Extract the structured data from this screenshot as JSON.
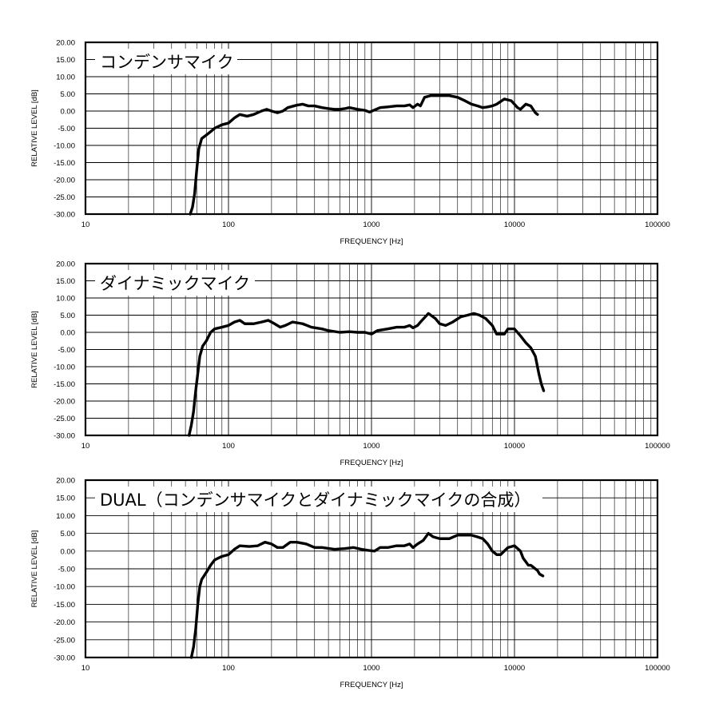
{
  "chart_data": [
    {
      "type": "line",
      "title": "コンデンサマイク",
      "xlabel": "FREQUENCY [Hz]",
      "ylabel": "RELATIVE LEVEL [dB]",
      "xscale": "log",
      "xlim": [
        10,
        100000
      ],
      "ylim": [
        -30,
        20
      ],
      "x_tick_labels": [
        "10",
        "100",
        "1000",
        "10000",
        "100000"
      ],
      "y_tick_labels": [
        "20.00",
        "15.00",
        "10.00",
        "5.00",
        "0.00",
        "-5.00",
        "-10.00",
        "-15.00",
        "-20.00",
        "-25.00",
        "-30.00"
      ],
      "grid": true,
      "series": [
        {
          "points": [
            [
              54,
              -30
            ],
            [
              56,
              -28
            ],
            [
              58,
              -24
            ],
            [
              60,
              -17
            ],
            [
              62,
              -11
            ],
            [
              65,
              -8
            ],
            [
              70,
              -7
            ],
            [
              75,
              -6
            ],
            [
              80,
              -5
            ],
            [
              90,
              -4
            ],
            [
              100,
              -3.5
            ],
            [
              110,
              -2
            ],
            [
              120,
              -1
            ],
            [
              135,
              -1.5
            ],
            [
              150,
              -1
            ],
            [
              170,
              0
            ],
            [
              185,
              0.5
            ],
            [
              200,
              0
            ],
            [
              220,
              -0.5
            ],
            [
              240,
              0
            ],
            [
              260,
              1
            ],
            [
              300,
              1.7
            ],
            [
              330,
              2
            ],
            [
              360,
              1.5
            ],
            [
              400,
              1.5
            ],
            [
              450,
              1
            ],
            [
              500,
              0.7
            ],
            [
              550,
              0.5
            ],
            [
              600,
              0.5
            ],
            [
              650,
              0.7
            ],
            [
              700,
              1
            ],
            [
              800,
              0.5
            ],
            [
              900,
              0.2
            ],
            [
              970,
              -0.3
            ],
            [
              1050,
              0.3
            ],
            [
              1150,
              1
            ],
            [
              1300,
              1.2
            ],
            [
              1500,
              1.5
            ],
            [
              1700,
              1.5
            ],
            [
              1850,
              1.8
            ],
            [
              1950,
              1
            ],
            [
              2100,
              2
            ],
            [
              2200,
              1.5
            ],
            [
              2350,
              4
            ],
            [
              2600,
              4.5
            ],
            [
              3000,
              4.5
            ],
            [
              3500,
              4.5
            ],
            [
              4000,
              4
            ],
            [
              4500,
              3
            ],
            [
              5000,
              2
            ],
            [
              5500,
              1.5
            ],
            [
              6000,
              1
            ],
            [
              6500,
              1.2
            ],
            [
              7000,
              1.5
            ],
            [
              7500,
              2
            ],
            [
              8500,
              3.5
            ],
            [
              9500,
              3
            ],
            [
              10500,
              1
            ],
            [
              11000,
              0.5
            ],
            [
              12000,
              2
            ],
            [
              13000,
              1.5
            ],
            [
              14000,
              -0.5
            ],
            [
              14500,
              -1
            ]
          ]
        }
      ]
    },
    {
      "type": "line",
      "title": "ダイナミックマイク",
      "xlabel": "FREQUENCY [Hz]",
      "ylabel": "RELATIVE LEVEL [dB]",
      "xscale": "log",
      "xlim": [
        10,
        100000
      ],
      "ylim": [
        -30,
        20
      ],
      "x_tick_labels": [
        "10",
        "100",
        "1000",
        "10000",
        "100000"
      ],
      "y_tick_labels": [
        "20.00",
        "15.00",
        "10.00",
        "5.00",
        "0.00",
        "-5.00",
        "-10.00",
        "-15.00",
        "-20.00",
        "-25.00",
        "-30.00"
      ],
      "grid": true,
      "series": [
        {
          "points": [
            [
              53,
              -30
            ],
            [
              55,
              -27
            ],
            [
              57,
              -23
            ],
            [
              59,
              -17
            ],
            [
              61,
              -12
            ],
            [
              63,
              -7
            ],
            [
              66,
              -4
            ],
            [
              70,
              -2.5
            ],
            [
              75,
              0
            ],
            [
              80,
              1
            ],
            [
              90,
              1.5
            ],
            [
              100,
              2
            ],
            [
              110,
              3
            ],
            [
              120,
              3.5
            ],
            [
              130,
              2.5
            ],
            [
              150,
              2.5
            ],
            [
              170,
              3
            ],
            [
              190,
              3.5
            ],
            [
              210,
              2.5
            ],
            [
              230,
              1.5
            ],
            [
              250,
              2
            ],
            [
              280,
              3
            ],
            [
              330,
              2.5
            ],
            [
              380,
              1.5
            ],
            [
              450,
              1
            ],
            [
              500,
              0.5
            ],
            [
              600,
              0
            ],
            [
              700,
              0.2
            ],
            [
              800,
              0
            ],
            [
              900,
              0
            ],
            [
              1000,
              -0.5
            ],
            [
              1100,
              0.5
            ],
            [
              1300,
              1
            ],
            [
              1500,
              1.5
            ],
            [
              1700,
              1.5
            ],
            [
              1850,
              2
            ],
            [
              1950,
              1.3
            ],
            [
              2100,
              2
            ],
            [
              2200,
              3
            ],
            [
              2500,
              5.5
            ],
            [
              2800,
              4
            ],
            [
              3000,
              2.5
            ],
            [
              3300,
              2
            ],
            [
              3700,
              3
            ],
            [
              4200,
              4.5
            ],
            [
              4700,
              5
            ],
            [
              5200,
              5.5
            ],
            [
              5700,
              5
            ],
            [
              6300,
              4
            ],
            [
              7000,
              2
            ],
            [
              7500,
              -0.5
            ],
            [
              8000,
              -0.5
            ],
            [
              8500,
              -0.5
            ],
            [
              9000,
              1
            ],
            [
              10000,
              1
            ],
            [
              11000,
              -1
            ],
            [
              12000,
              -3
            ],
            [
              13000,
              -4.5
            ],
            [
              14000,
              -7
            ],
            [
              14800,
              -12
            ],
            [
              15400,
              -15
            ],
            [
              16000,
              -17
            ]
          ]
        }
      ]
    },
    {
      "type": "line",
      "title": "DUAL（コンデンサマイクとダイナミックマイクの合成）",
      "xlabel": "FREQUENCY [Hz]",
      "ylabel": "RELATIVE LEVEL [dB]",
      "xscale": "log",
      "xlim": [
        10,
        100000
      ],
      "ylim": [
        -30,
        20
      ],
      "x_tick_labels": [
        "10",
        "100",
        "1000",
        "10000",
        "100000"
      ],
      "y_tick_labels": [
        "20.00",
        "15.00",
        "10.00",
        "5.00",
        "0.00",
        "-5.00",
        "-10.00",
        "-15.00",
        "-20.00",
        "-25.00",
        "-30.00"
      ],
      "grid": true,
      "series": [
        {
          "points": [
            [
              55,
              -30
            ],
            [
              57,
              -27
            ],
            [
              59,
              -22
            ],
            [
              61,
              -15
            ],
            [
              63,
              -10
            ],
            [
              65,
              -8
            ],
            [
              70,
              -6
            ],
            [
              75,
              -4
            ],
            [
              80,
              -2.5
            ],
            [
              90,
              -1.5
            ],
            [
              100,
              -1
            ],
            [
              110,
              0.5
            ],
            [
              120,
              1.5
            ],
            [
              140,
              1.3
            ],
            [
              160,
              1.5
            ],
            [
              180,
              2.5
            ],
            [
              200,
              2
            ],
            [
              220,
              1
            ],
            [
              240,
              1
            ],
            [
              270,
              2.5
            ],
            [
              300,
              2.5
            ],
            [
              350,
              2
            ],
            [
              400,
              1
            ],
            [
              450,
              1
            ],
            [
              550,
              0.5
            ],
            [
              650,
              0.7
            ],
            [
              750,
              1
            ],
            [
              850,
              0.5
            ],
            [
              950,
              0.2
            ],
            [
              1050,
              0
            ],
            [
              1150,
              1
            ],
            [
              1300,
              1
            ],
            [
              1500,
              1.5
            ],
            [
              1700,
              1.5
            ],
            [
              1850,
              2
            ],
            [
              1950,
              1
            ],
            [
              2100,
              2
            ],
            [
              2300,
              3
            ],
            [
              2500,
              5
            ],
            [
              2700,
              4
            ],
            [
              3000,
              3.5
            ],
            [
              3500,
              3.5
            ],
            [
              4000,
              4.5
            ],
            [
              4500,
              4.5
            ],
            [
              5000,
              4.5
            ],
            [
              5500,
              4
            ],
            [
              6000,
              3.5
            ],
            [
              6500,
              2
            ],
            [
              7000,
              0
            ],
            [
              7500,
              -1
            ],
            [
              8000,
              -1
            ],
            [
              9000,
              1
            ],
            [
              10000,
              1.5
            ],
            [
              11000,
              0
            ],
            [
              11500,
              -2
            ],
            [
              12000,
              -3
            ],
            [
              12500,
              -4
            ],
            [
              13000,
              -4
            ],
            [
              13500,
              -4.5
            ],
            [
              14500,
              -5.5
            ],
            [
              15000,
              -6.5
            ],
            [
              15800,
              -7
            ]
          ]
        }
      ]
    }
  ]
}
